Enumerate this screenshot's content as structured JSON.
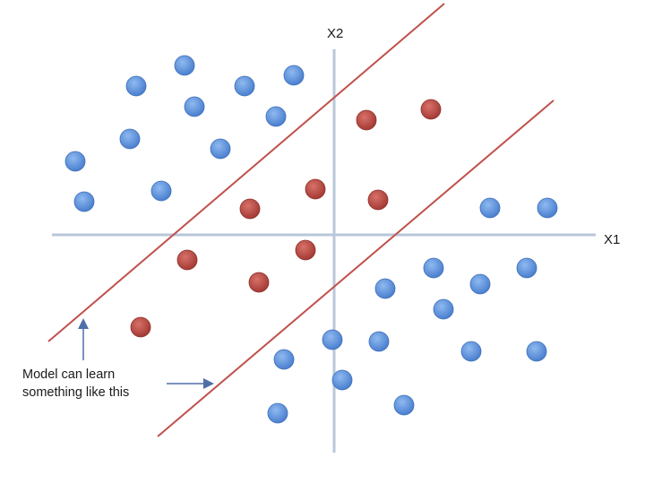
{
  "axes": {
    "x_label": "X1",
    "y_label": "X2"
  },
  "annotation": {
    "line1": "Model can learn",
    "line2": "something like this"
  },
  "legend_colors": {
    "class_a": "#5b8fd9",
    "class_b": "#b94a44",
    "boundary": "#c0504d",
    "axis": "#b8c7da",
    "arrow": "#4f6fa8"
  }
}
